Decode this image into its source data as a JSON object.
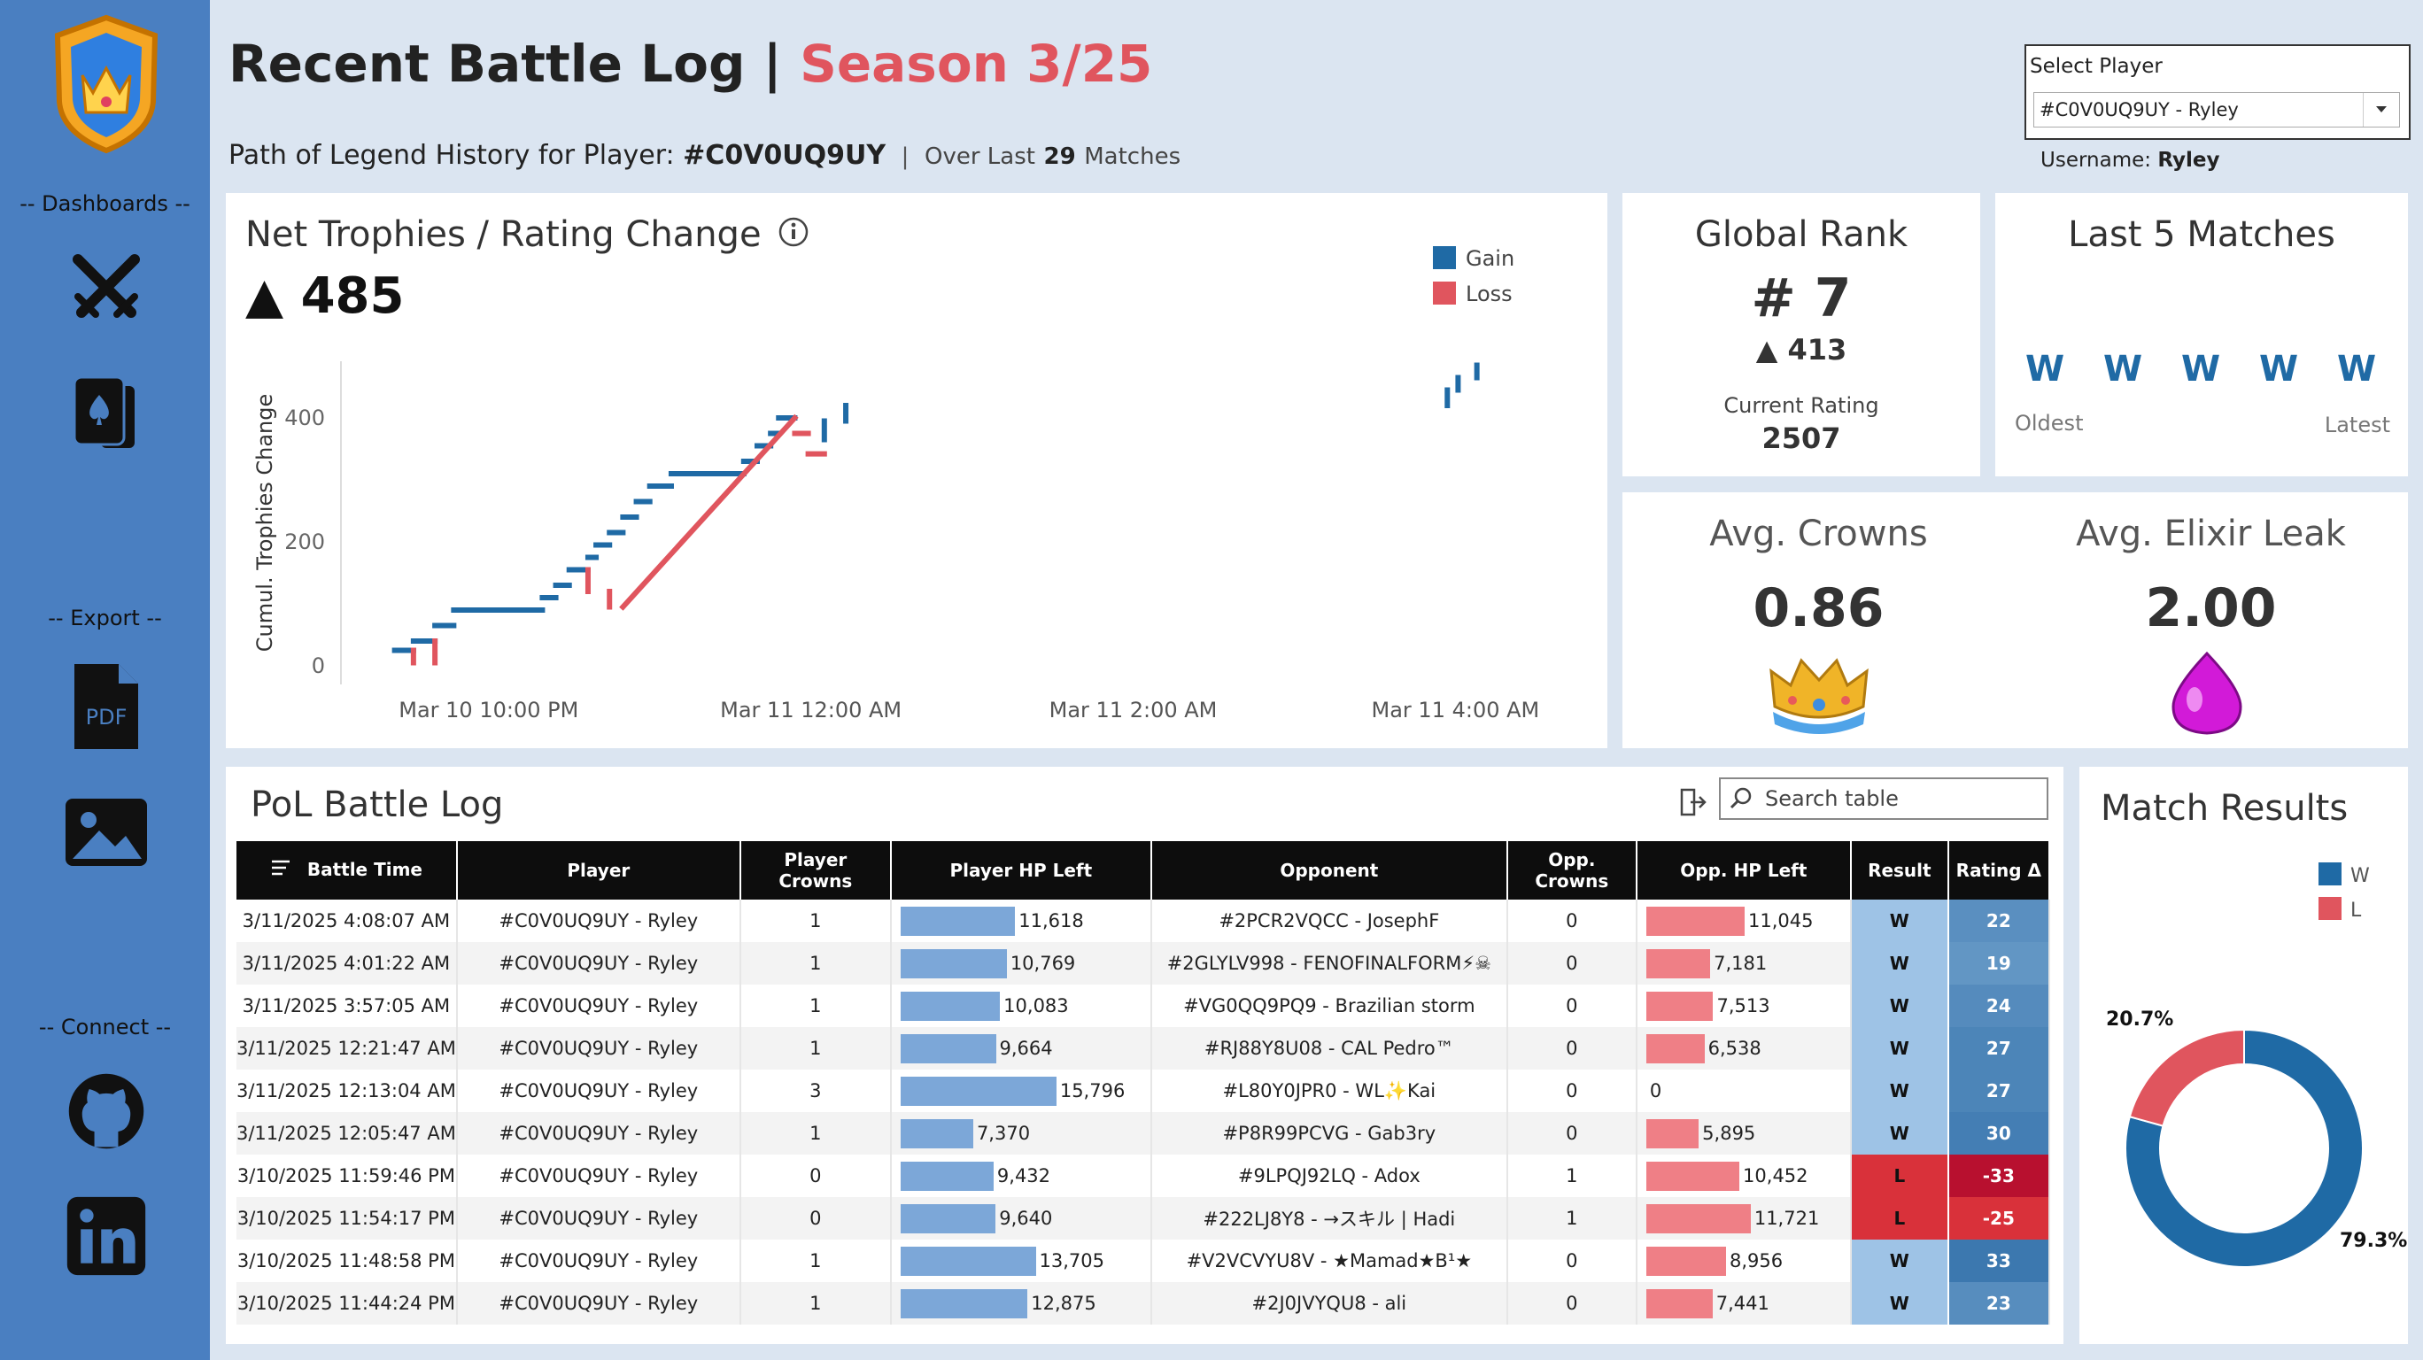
{
  "sidebar": {
    "dashboards_label": "-- Dashboards --",
    "export_label": "-- Export --",
    "connect_label": "-- Connect --",
    "pdf_text": "PDF"
  },
  "header": {
    "title": "Recent Battle Log",
    "separator": "|",
    "season": "Season 3/25",
    "subtitle_prefix": "Path of Legend History for Player:",
    "player_tag": "#C0V0UQ9UY",
    "divider": "|",
    "over_last": "Over Last",
    "matches_count": "29",
    "matches_label": "Matches"
  },
  "player_select": {
    "label": "Select Player",
    "value": "#C0V0UQ9UY - Ryley",
    "username_label": "Username:",
    "username": "Ryley"
  },
  "net_trophies": {
    "title": "Net Trophies / Rating Change",
    "value": "▲ 485"
  },
  "global_rank": {
    "title": "Global Rank",
    "rank": "# 7",
    "change": "▲ 413",
    "rating_label": "Current Rating",
    "rating": "2507"
  },
  "last5": {
    "title": "Last 5 Matches",
    "results": [
      "W",
      "W",
      "W",
      "W",
      "W"
    ],
    "oldest": "Oldest",
    "latest": "Latest"
  },
  "avg_crowns": {
    "title": "Avg. Crowns",
    "value": "0.86"
  },
  "avg_elixir": {
    "title": "Avg. Elixir Leak",
    "value": "2.00"
  },
  "battle_log": {
    "title": "PoL Battle Log",
    "search_placeholder": "Search table",
    "columns": [
      "Battle Time",
      "Player",
      "Player Crowns",
      "Player HP Left",
      "Opponent",
      "Opp. Crowns",
      "Opp. HP Left",
      "Result",
      "Rating Δ"
    ],
    "rows": [
      {
        "time": "3/11/2025 4:08:07 AM",
        "player": "#C0V0UQ9UY - Ryley",
        "crowns": "1",
        "hp": 11618,
        "hp_label": "11,618",
        "opponent": "#2PCR2VQCC - JosephF",
        "opp_crowns": "0",
        "opp_hp": 11045,
        "opp_hp_label": "11,045",
        "result": "W",
        "delta": 22,
        "delta_label": "22"
      },
      {
        "time": "3/11/2025 4:01:22 AM",
        "player": "#C0V0UQ9UY - Ryley",
        "crowns": "1",
        "hp": 10769,
        "hp_label": "10,769",
        "opponent": "#2GLYLV998 - FENOFINALFORM⚡☠",
        "opp_crowns": "0",
        "opp_hp": 7181,
        "opp_hp_label": "7,181",
        "result": "W",
        "delta": 19,
        "delta_label": "19"
      },
      {
        "time": "3/11/2025 3:57:05 AM",
        "player": "#C0V0UQ9UY - Ryley",
        "crowns": "1",
        "hp": 10083,
        "hp_label": "10,083",
        "opponent": "#VG0QQ9PQ9 - Brazilian storm",
        "opp_crowns": "0",
        "opp_hp": 7513,
        "opp_hp_label": "7,513",
        "result": "W",
        "delta": 24,
        "delta_label": "24"
      },
      {
        "time": "3/11/2025 12:21:47 AM",
        "player": "#C0V0UQ9UY - Ryley",
        "crowns": "1",
        "hp": 9664,
        "hp_label": "9,664",
        "opponent": "#RJ88Y8U08 - CAL Pedro™",
        "opp_crowns": "0",
        "opp_hp": 6538,
        "opp_hp_label": "6,538",
        "result": "W",
        "delta": 27,
        "delta_label": "27"
      },
      {
        "time": "3/11/2025 12:13:04 AM",
        "player": "#C0V0UQ9UY - Ryley",
        "crowns": "3",
        "hp": 15796,
        "hp_label": "15,796",
        "opponent": "#L80Y0JPR0 - WL✨Kai",
        "opp_crowns": "0",
        "opp_hp": 0,
        "opp_hp_label": "0",
        "result": "W",
        "delta": 27,
        "delta_label": "27"
      },
      {
        "time": "3/11/2025 12:05:47 AM",
        "player": "#C0V0UQ9UY - Ryley",
        "crowns": "1",
        "hp": 7370,
        "hp_label": "7,370",
        "opponent": "#P8R99PCVG - Gab3ry",
        "opp_crowns": "0",
        "opp_hp": 5895,
        "opp_hp_label": "5,895",
        "result": "W",
        "delta": 30,
        "delta_label": "30"
      },
      {
        "time": "3/10/2025 11:59:46 PM",
        "player": "#C0V0UQ9UY - Ryley",
        "crowns": "0",
        "hp": 9432,
        "hp_label": "9,432",
        "opponent": "#9LPQJ92LQ - Adox",
        "opp_crowns": "1",
        "opp_hp": 10452,
        "opp_hp_label": "10,452",
        "result": "L",
        "delta": -33,
        "delta_label": "-33"
      },
      {
        "time": "3/10/2025 11:54:17 PM",
        "player": "#C0V0UQ9UY - Ryley",
        "crowns": "0",
        "hp": 9640,
        "hp_label": "9,640",
        "opponent": "#222LJ8Y8 - →スキル | Hadi",
        "opp_crowns": "1",
        "opp_hp": 11721,
        "opp_hp_label": "11,721",
        "result": "L",
        "delta": -25,
        "delta_label": "-25"
      },
      {
        "time": "3/10/2025 11:48:58 PM",
        "player": "#C0V0UQ9UY - Ryley",
        "crowns": "1",
        "hp": 13705,
        "hp_label": "13,705",
        "opponent": "#V2VCVYU8V - ★Mamad★B¹★",
        "opp_crowns": "0",
        "opp_hp": 8956,
        "opp_hp_label": "8,956",
        "result": "W",
        "delta": 33,
        "delta_label": "33"
      },
      {
        "time": "3/10/2025 11:44:24 PM",
        "player": "#C0V0UQ9UY - Ryley",
        "crowns": "1",
        "hp": 12875,
        "hp_label": "12,875",
        "opponent": "#2J0JVYQU8 - ali",
        "opp_crowns": "0",
        "opp_hp": 7441,
        "opp_hp_label": "7,441",
        "result": "W",
        "delta": 23,
        "delta_label": "23"
      }
    ]
  },
  "match_results": {
    "title": "Match Results"
  },
  "colors": {
    "gain": "#1f6aa5",
    "loss": "#e0555e",
    "win_cell": "#9ec3e6",
    "loss_cell": "#d9313a",
    "delta_pos": "#3f79b3",
    "delta_neg": "#b8102f"
  },
  "chart_data": [
    {
      "type": "line",
      "title": "",
      "ylabel": "Cumul. Trophies Change",
      "xlabel": "",
      "x_ticks": [
        "Mar 10 10:00 PM",
        "Mar 11 12:00 AM",
        "Mar 11 2:00 AM",
        "Mar 11 4:00 AM"
      ],
      "y_ticks": [
        0,
        200,
        400
      ],
      "ylim": [
        -30,
        520
      ],
      "legend": [
        "Gain",
        "Loss"
      ],
      "legend_position": "top-right",
      "grid": false,
      "series": [
        {
          "name": "Gain",
          "points": [
            [
              "Mar 10 9:25 PM",
              25
            ],
            [
              "Mar 10 9:32 PM",
              25
            ],
            [
              "Mar 10 9:32 PM",
              40
            ],
            [
              "Mar 10 9:40 PM",
              40
            ],
            [
              "Mar 10 9:40 PM",
              65
            ],
            [
              "Mar 10 9:47 PM",
              65
            ],
            [
              "Mar 10 9:47 PM",
              90
            ],
            [
              "Mar 10 10:20 PM",
              90
            ],
            [
              "Mar 10 10:20 PM",
              110
            ],
            [
              "Mar 10 10:25 PM",
              110
            ],
            [
              "Mar 10 10:25 PM",
              130
            ],
            [
              "Mar 10 10:30 PM",
              130
            ],
            [
              "Mar 10 10:30 PM",
              155
            ],
            [
              "Mar 10 10:37 PM",
              155
            ],
            [
              "Mar 10 10:37 PM",
              175
            ],
            [
              "Mar 10 10:40 PM",
              175
            ],
            [
              "Mar 10 10:40 PM",
              195
            ],
            [
              "Mar 10 10:45 PM",
              195
            ],
            [
              "Mar 10 10:45 PM",
              215
            ],
            [
              "Mar 10 10:50 PM",
              215
            ],
            [
              "Mar 10 10:50 PM",
              240
            ],
            [
              "Mar 10 10:55 PM",
              240
            ],
            [
              "Mar 10 10:55 PM",
              265
            ],
            [
              "Mar 10 11:00 PM",
              265
            ],
            [
              "Mar 10 11:00 PM",
              290
            ],
            [
              "Mar 10 11:08 PM",
              290
            ],
            [
              "Mar 10 11:08 PM",
              310
            ],
            [
              "Mar 10 11:35 PM",
              310
            ],
            [
              "Mar 10 11:35 PM",
              330
            ],
            [
              "Mar 10 11:40 PM",
              330
            ],
            [
              "Mar 10 11:40 PM",
              355
            ],
            [
              "Mar 10 11:45 PM",
              355
            ],
            [
              "Mar 10 11:45 PM",
              375
            ],
            [
              "Mar 10 11:48 PM",
              375
            ],
            [
              "Mar 10 11:48 PM",
              400
            ],
            [
              "Mar 10 11:54 PM",
              400
            ],
            [
              "Mar 11 12:05 AM",
              365
            ],
            [
              "Mar 11 12:05 AM",
              395
            ],
            [
              "Mar 11 12:13 AM",
              395
            ],
            [
              "Mar 11 12:13 AM",
              420
            ],
            [
              "Mar 11 3:57 AM",
              420
            ],
            [
              "Mar 11 3:57 AM",
              445
            ],
            [
              "Mar 11 4:01 AM",
              445
            ],
            [
              "Mar 11 4:01 AM",
              465
            ],
            [
              "Mar 11 4:08 AM",
              465
            ],
            [
              "Mar 11 4:08 AM",
              485
            ]
          ]
        },
        {
          "name": "Loss",
          "points": [
            [
              "Mar 10 9:32 PM",
              25
            ],
            [
              "Mar 10 9:32 PM",
              5
            ],
            [
              "Mar 10 9:40 PM",
              5
            ],
            [
              "Mar 10 9:40 PM",
              40
            ],
            [
              "Mar 10 10:37 PM",
              155
            ],
            [
              "Mar 10 10:37 PM",
              120
            ],
            [
              "Mar 10 10:45 PM",
              120
            ],
            [
              "Mar 10 10:45 PM",
              95
            ],
            [
              "Mar 10 10:50 PM",
              95
            ],
            [
              "Mar 10 11:54 PM",
              400
            ],
            [
              "Mar 10 11:54 PM",
              375
            ],
            [
              "Mar 10 11:59 PM",
              375
            ],
            [
              "Mar 10 11:59 PM",
              342
            ],
            [
              "Mar 11 12:05 AM",
              342
            ]
          ]
        }
      ]
    },
    {
      "type": "pie",
      "title": "Match Results",
      "categories": [
        "W",
        "L"
      ],
      "values": [
        79.3,
        20.7
      ],
      "labels": [
        "79.3%",
        "20.7%"
      ],
      "legend_position": "top-right"
    }
  ]
}
